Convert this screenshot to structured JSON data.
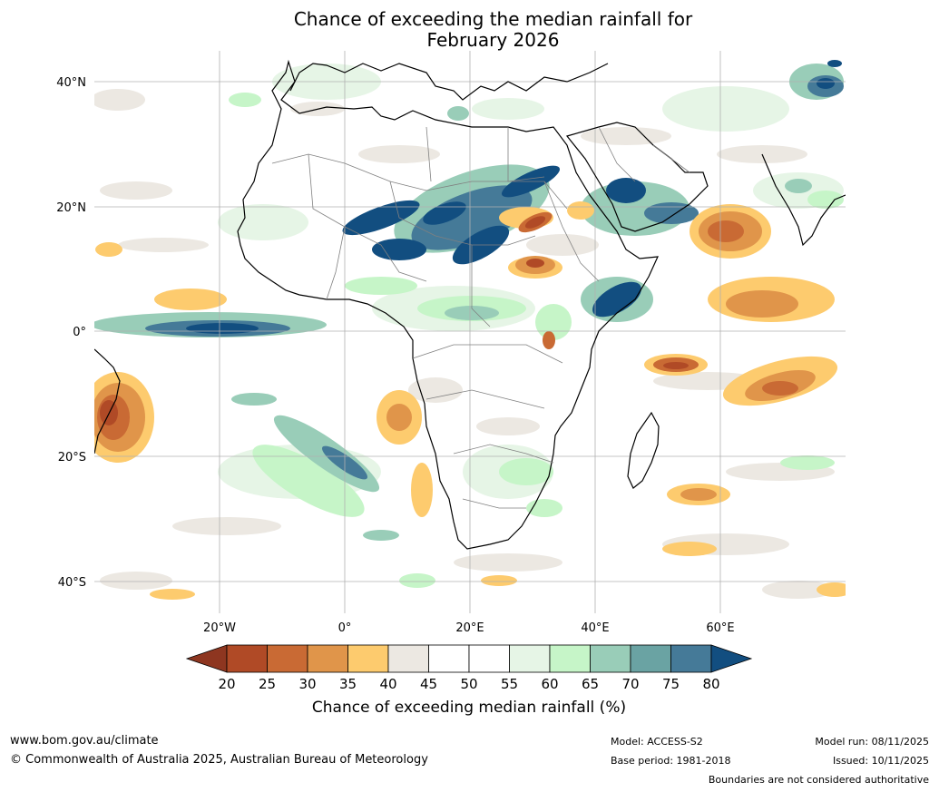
{
  "title": {
    "line1": "Chance of exceeding the median rainfall for",
    "line2": "February 2026"
  },
  "map": {
    "lat_ticks": [
      "40°N",
      "20°N",
      "0°",
      "20°S",
      "40°S"
    ],
    "lon_ticks": [
      "20°W",
      "0°",
      "20°E",
      "40°E",
      "60°E"
    ],
    "lat_range": [
      -45,
      45
    ],
    "lon_range": [
      -40,
      80
    ]
  },
  "colorbar": {
    "title": "Chance of exceeding median rainfall (%)",
    "ticks": [
      "20",
      "25",
      "30",
      "35",
      "40",
      "45",
      "50",
      "55",
      "60",
      "65",
      "70",
      "75",
      "80"
    ],
    "colors": {
      "below20": "#8e3620",
      "c20_25": "#b04a26",
      "c25_30": "#c96a34",
      "c30_35": "#e0954a",
      "c35_40": "#fdcb6e",
      "c40_45": "#ece8e2",
      "c45_55": "#ffffff",
      "c55_60": "#e6f5e6",
      "c60_65": "#c6f5c8",
      "c65_70": "#99cdb8",
      "c70_75": "#6aa3a3",
      "c75_80": "#457a98",
      "above80": "#124e80"
    }
  },
  "footer": {
    "website": "www.bom.gov.au/climate",
    "copyright": "© Commonwealth of Australia 2025, Australian Bureau of Meteorology",
    "model": "Model: ACCESS-S2",
    "base_period": "Base period: 1981-2018",
    "model_run": "Model run: 08/11/2025",
    "issued": "Issued: 10/11/2025",
    "disclaimer": "Boundaries are not considered authoritative"
  }
}
